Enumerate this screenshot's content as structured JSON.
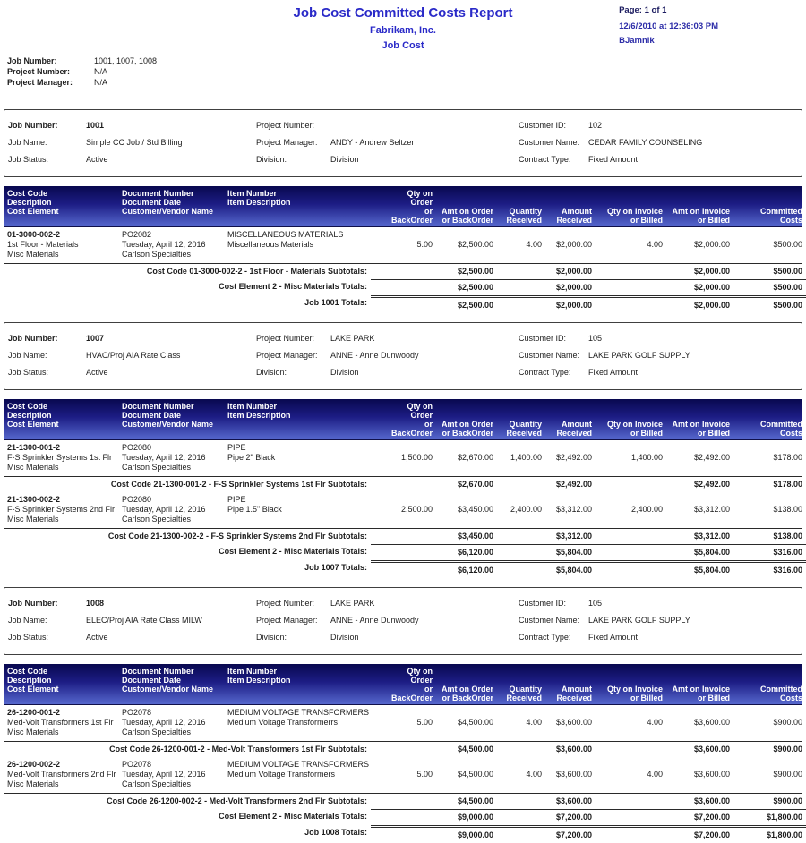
{
  "report": {
    "title": "Job Cost Committed Costs Report",
    "company": "Fabrikam, Inc.",
    "module": "Job Cost",
    "page": "Page: 1 of 1",
    "datetime": "12/6/2010 at 12:36:03 PM",
    "user": "BJamnik"
  },
  "filters": {
    "job_number_label": "Job Number:",
    "job_number": "1001, 1007, 1008",
    "project_number_label": "Project Number:",
    "project_number": "N/A",
    "project_manager_label": "Project Manager:",
    "project_manager": "N/A"
  },
  "labels": {
    "job_number": "Job Number:",
    "job_name": "Job Name:",
    "job_status": "Job Status:",
    "project_number": "Project Number:",
    "project_manager": "Project Manager:",
    "division": "Division:",
    "customer_id": "Customer ID:",
    "customer_name": "Customer Name:",
    "contract_type": "Contract Type:"
  },
  "table_header": {
    "cost_code": [
      "Cost Code",
      "Description",
      "Cost Element"
    ],
    "document": [
      "Document Number",
      "Document Date",
      "Customer/Vendor Name"
    ],
    "item": [
      "Item Number",
      "Item Description"
    ],
    "qty_order": [
      "Qty on Order",
      "or BackOrder"
    ],
    "amt_order": [
      "Amt on Order",
      "or BackOrder"
    ],
    "qty_received": [
      "Quantity",
      "Received"
    ],
    "amt_received": [
      "Amount",
      "Received"
    ],
    "qty_invoice": [
      "Qty on Invoice",
      "or Billed"
    ],
    "amt_invoice": [
      "Amt on Invoice",
      "or Billed"
    ],
    "committed": [
      "Committed",
      "Costs"
    ]
  },
  "jobs": [
    {
      "info": {
        "job_number": "1001",
        "job_name": "Simple CC Job / Std Billing",
        "job_status": "Active",
        "project_number": "",
        "project_manager": "ANDY - Andrew Seltzer",
        "division": "Division",
        "customer_id": "102",
        "customer_name": "CEDAR FAMILY COUNSELING",
        "contract_type": "Fixed Amount"
      },
      "rows": [
        {
          "cost_code": "01-3000-002-2",
          "description": "1st Floor - Materials",
          "cost_element": "Misc Materials",
          "doc_number": "PO2082",
          "doc_date": "Tuesday, April 12, 2016",
          "vendor": "Carlson Specialties",
          "item_number": "MISCELLANEOUS MATERIALS",
          "item_description": "Miscellaneous Materials",
          "qty_order": "5.00",
          "amt_order": "$2,500.00",
          "qty_received": "4.00",
          "amt_received": "$2,000.00",
          "qty_invoice": "4.00",
          "amt_invoice": "$2,000.00",
          "committed": "$500.00",
          "subtotal": {
            "label": "Cost Code 01-3000-002-2 - 1st Floor - Materials Subtotals:",
            "amt_order": "$2,500.00",
            "amt_received": "$2,000.00",
            "amt_invoice": "$2,000.00",
            "committed": "$500.00"
          }
        }
      ],
      "ce_total": {
        "label": "Cost Element 2 - Misc Materials Totals:",
        "amt_order": "$2,500.00",
        "amt_received": "$2,000.00",
        "amt_invoice": "$2,000.00",
        "committed": "$500.00"
      },
      "job_total": {
        "label": "Job 1001 Totals:",
        "amt_order": "$2,500.00",
        "amt_received": "$2,000.00",
        "amt_invoice": "$2,000.00",
        "committed": "$500.00"
      }
    },
    {
      "info": {
        "job_number": "1007",
        "job_name": "HVAC/Proj AIA Rate Class",
        "job_status": "Active",
        "project_number": "LAKE PARK",
        "project_manager": "ANNE - Anne Dunwoody",
        "division": "Division",
        "customer_id": "105",
        "customer_name": "LAKE PARK GOLF SUPPLY",
        "contract_type": "Fixed Amount"
      },
      "rows": [
        {
          "cost_code": "21-1300-001-2",
          "description": "F-S Sprinkler Systems 1st Flr",
          "cost_element": "Misc Materials",
          "doc_number": "PO2080",
          "doc_date": "Tuesday, April 12, 2016",
          "vendor": "Carlson Specialties",
          "item_number": "PIPE",
          "item_description": "Pipe 2\" Black",
          "qty_order": "1,500.00",
          "amt_order": "$2,670.00",
          "qty_received": "1,400.00",
          "amt_received": "$2,492.00",
          "qty_invoice": "1,400.00",
          "amt_invoice": "$2,492.00",
          "committed": "$178.00",
          "subtotal": {
            "label": "Cost Code 21-1300-001-2 - F-S Sprinkler Systems 1st Flr Subtotals:",
            "amt_order": "$2,670.00",
            "amt_received": "$2,492.00",
            "amt_invoice": "$2,492.00",
            "committed": "$178.00"
          }
        },
        {
          "cost_code": "21-1300-002-2",
          "description": "F-S Sprinkler Systems 2nd Flr",
          "cost_element": "Misc Materials",
          "doc_number": "PO2080",
          "doc_date": "Tuesday, April 12, 2016",
          "vendor": "Carlson Specialties",
          "item_number": "PIPE",
          "item_description": "Pipe 1.5\" Black",
          "qty_order": "2,500.00",
          "amt_order": "$3,450.00",
          "qty_received": "2,400.00",
          "amt_received": "$3,312.00",
          "qty_invoice": "2,400.00",
          "amt_invoice": "$3,312.00",
          "committed": "$138.00",
          "subtotal": {
            "label": "Cost Code 21-1300-002-2 - F-S Sprinkler Systems 2nd Flr Subtotals:",
            "amt_order": "$3,450.00",
            "amt_received": "$3,312.00",
            "amt_invoice": "$3,312.00",
            "committed": "$138.00"
          }
        }
      ],
      "ce_total": {
        "label": "Cost Element 2 - Misc Materials Totals:",
        "amt_order": "$6,120.00",
        "amt_received": "$5,804.00",
        "amt_invoice": "$5,804.00",
        "committed": "$316.00"
      },
      "job_total": {
        "label": "Job 1007 Totals:",
        "amt_order": "$6,120.00",
        "amt_received": "$5,804.00",
        "amt_invoice": "$5,804.00",
        "committed": "$316.00"
      }
    },
    {
      "info": {
        "job_number": "1008",
        "job_name": "ELEC/Proj AIA Rate Class MILW",
        "job_status": "Active",
        "project_number": "LAKE PARK",
        "project_manager": "ANNE - Anne Dunwoody",
        "division": "Division",
        "customer_id": "105",
        "customer_name": "LAKE PARK GOLF SUPPLY",
        "contract_type": "Fixed Amount"
      },
      "rows": [
        {
          "cost_code": "26-1200-001-2",
          "description": "Med-Volt Transformers 1st Flr",
          "cost_element": "Misc Materials",
          "doc_number": "PO2078",
          "doc_date": "Tuesday, April 12, 2016",
          "vendor": "Carlson Specialties",
          "item_number": "MEDIUM VOLTAGE TRANSFORMERS",
          "item_description": "Medium Voltage Transformerrs",
          "qty_order": "5.00",
          "amt_order": "$4,500.00",
          "qty_received": "4.00",
          "amt_received": "$3,600.00",
          "qty_invoice": "4.00",
          "amt_invoice": "$3,600.00",
          "committed": "$900.00",
          "subtotal": {
            "label": "Cost Code 26-1200-001-2 - Med-Volt Transformers 1st Flr Subtotals:",
            "amt_order": "$4,500.00",
            "amt_received": "$3,600.00",
            "amt_invoice": "$3,600.00",
            "committed": "$900.00"
          }
        },
        {
          "cost_code": "26-1200-002-2",
          "description": "Med-Volt Transformers 2nd Flr",
          "cost_element": "Misc Materials",
          "doc_number": "PO2078",
          "doc_date": "Tuesday, April 12, 2016",
          "vendor": "Carlson Specialties",
          "item_number": "MEDIUM VOLTAGE TRANSFORMERS",
          "item_description": "Medium Voltage Transformers",
          "qty_order": "5.00",
          "amt_order": "$4,500.00",
          "qty_received": "4.00",
          "amt_received": "$3,600.00",
          "qty_invoice": "4.00",
          "amt_invoice": "$3,600.00",
          "committed": "$900.00",
          "subtotal": {
            "label": "Cost Code 26-1200-002-2 - Med-Volt Transformers 2nd Flr Subtotals:",
            "amt_order": "$4,500.00",
            "amt_received": "$3,600.00",
            "amt_invoice": "$3,600.00",
            "committed": "$900.00"
          }
        }
      ],
      "ce_total": {
        "label": "Cost Element 2 - Misc Materials Totals:",
        "amt_order": "$9,000.00",
        "amt_received": "$7,200.00",
        "amt_invoice": "$7,200.00",
        "committed": "$1,800.00"
      },
      "job_total": {
        "label": "Job 1008 Totals:",
        "amt_order": "$9,000.00",
        "amt_received": "$7,200.00",
        "amt_invoice": "$7,200.00",
        "committed": "$1,800.00"
      }
    }
  ]
}
